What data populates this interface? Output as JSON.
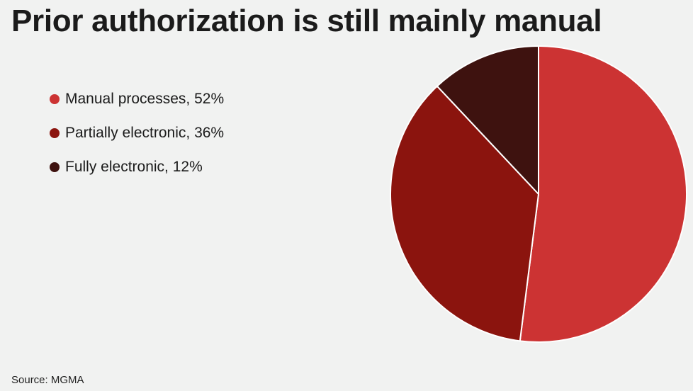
{
  "chart_data": {
    "type": "pie",
    "title": "Prior authorization is still mainly manual",
    "slices": [
      {
        "label": "Manual processes, 52%",
        "value": 52,
        "color": "#cc3333"
      },
      {
        "label": "Partially electronic, 36%",
        "value": 36,
        "color": "#8b140e"
      },
      {
        "label": "Fully electronic, 12%",
        "value": 12,
        "color": "#3e120f"
      }
    ],
    "legend_position": "left",
    "start_angle_deg": 0,
    "direction": "clockwise",
    "source": "Source: MGMA"
  }
}
